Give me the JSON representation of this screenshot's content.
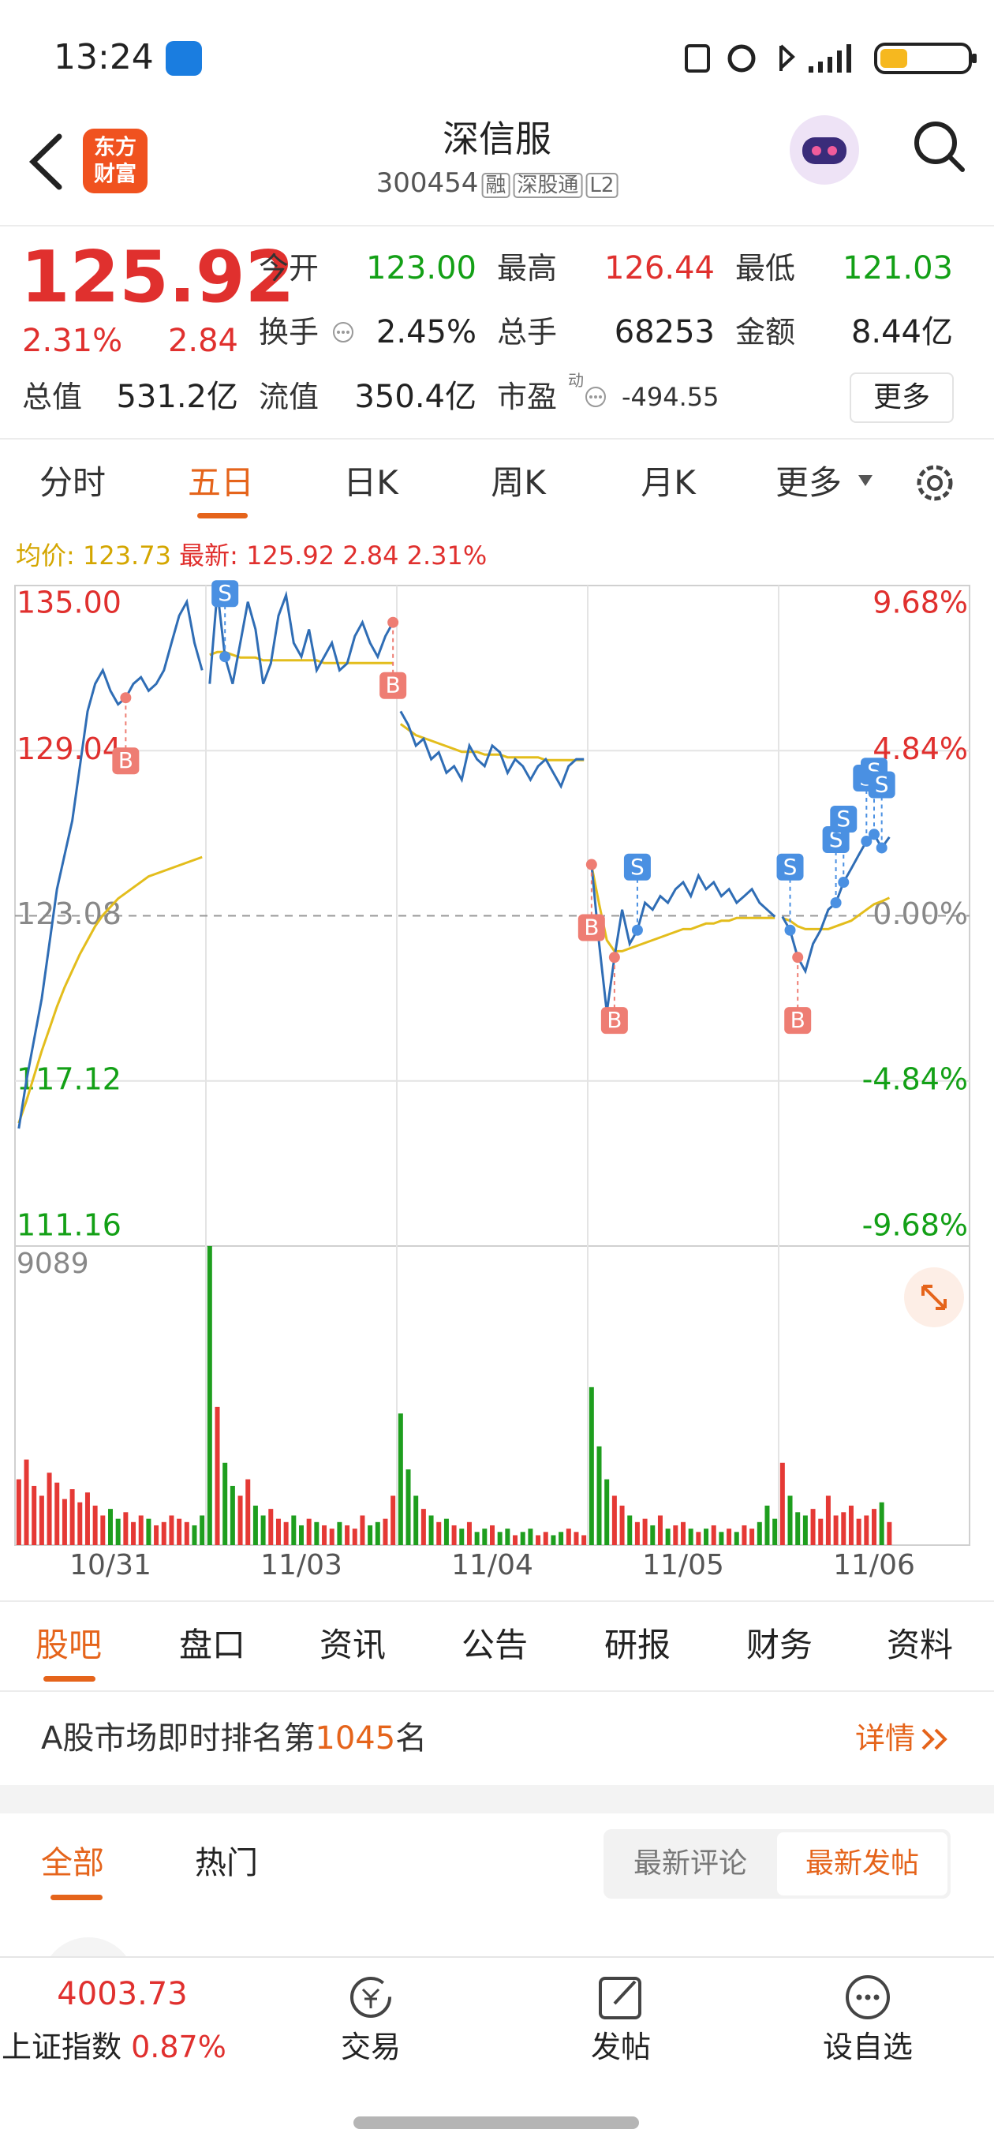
{
  "status": {
    "time": "13:24"
  },
  "header": {
    "title": "深信服",
    "code": "300454",
    "badges": [
      "融",
      "深股通",
      "L2"
    ],
    "logo": [
      "东方",
      "财富"
    ]
  },
  "quote": {
    "price": "125.92",
    "pct": "2.31%",
    "change": "2.84",
    "fields": [
      {
        "label": "今开",
        "value": "123.00"
      },
      {
        "label": "最高",
        "value": "126.44"
      },
      {
        "label": "最低",
        "value": "121.03"
      },
      {
        "label": "换手",
        "value": "2.45%"
      },
      {
        "label": "总手",
        "value": "68253"
      },
      {
        "label": "金额",
        "value": "8.44亿"
      },
      {
        "label": "总值",
        "value": "531.2亿"
      },
      {
        "label": "流值",
        "value": "350.4亿"
      },
      {
        "label": "市盈",
        "value": "-494.55"
      }
    ],
    "pe_sup": "动",
    "more": "更多"
  },
  "tabs": [
    "分时",
    "五日",
    "日K",
    "周K",
    "月K",
    "更多"
  ],
  "legend": {
    "avg_label": "均价:",
    "avg": "123.73",
    "latest_label": "最新:",
    "latest": "125.92",
    "change": "2.84",
    "pct": "2.31%"
  },
  "chart": {
    "type": "line",
    "ylim": [
      111.16,
      135
    ],
    "yticks": [
      {
        "value": 135,
        "label": "135.00"
      },
      {
        "value": 129.04,
        "label": "129.04"
      },
      {
        "value": 123.08,
        "label": "123.08"
      },
      {
        "value": 117.12,
        "label": "117.12"
      },
      {
        "value": 111.16,
        "label": "111.16"
      }
    ],
    "y2lim": [
      -9.68,
      9.68
    ],
    "y2ticks": [
      {
        "value": 9.68,
        "label": "9.68%"
      },
      {
        "value": 4.84,
        "label": "4.84%"
      },
      {
        "value": 0,
        "label": "0.00%"
      },
      {
        "value": -4.84,
        "label": "-4.84%"
      },
      {
        "value": -9.68,
        "label": "-9.68%"
      }
    ],
    "volume_lim": [
      0,
      9089
    ],
    "volume_ticks": [
      9089
    ],
    "colors": {
      "price": "#2f6db5",
      "avg": "#e3bd1c",
      "up": "#e53935",
      "down": "#1e9e1e",
      "buy": "#ee7d73",
      "sell": "#4a90e2"
    },
    "days": [
      {
        "date": "10/31",
        "price": [
          115.4,
          117.13,
          118.61,
          120.09,
          122.07,
          124.04,
          125.28,
          126.51,
          128.48,
          130.46,
          131.45,
          131.94,
          131.2,
          130.71,
          130.95,
          131.45,
          131.69,
          131.2,
          131.45,
          131.94,
          132.93,
          133.91,
          134.41,
          132.93,
          131.94
        ],
        "avg": [
          115.6,
          116.4,
          117.3,
          118.2,
          119.0,
          119.8,
          120.5,
          121.1,
          121.7,
          122.2,
          122.7,
          123.1,
          123.4,
          123.7,
          123.9,
          124.1,
          124.3,
          124.5,
          124.6,
          124.7,
          124.8,
          124.9,
          125.0,
          125.1,
          125.2
        ],
        "volume": [
          2000,
          2600,
          1800,
          1500,
          2200,
          1900,
          1400,
          1700,
          1300,
          1600,
          1200,
          900,
          1100,
          800,
          1000,
          700,
          900,
          800,
          600,
          700,
          900,
          800,
          700,
          600,
          900
        ],
        "signals": [
          null,
          null,
          null,
          null,
          null,
          null,
          null,
          null,
          null,
          null,
          null,
          null,
          null,
          null,
          "B",
          null,
          null,
          null,
          null,
          null,
          null,
          null,
          null,
          null,
          null
        ]
      },
      {
        "date": "11/03",
        "price": [
          131.45,
          134.8,
          132.43,
          131.45,
          132.93,
          134.41,
          133.42,
          131.45,
          132.19,
          133.91,
          134.65,
          132.93,
          132.43,
          133.42,
          131.94,
          132.43,
          132.93,
          131.94,
          132.19,
          133.17,
          133.67,
          132.93,
          132.43,
          133.17,
          133.67
        ],
        "avg": [
          132.5,
          132.6,
          132.6,
          132.5,
          132.4,
          132.4,
          132.4,
          132.3,
          132.3,
          132.3,
          132.3,
          132.3,
          132.3,
          132.3,
          132.3,
          132.2,
          132.2,
          132.2,
          132.2,
          132.2,
          132.2,
          132.2,
          132.2,
          132.2,
          132.2
        ],
        "volume": [
          9089,
          4200,
          2500,
          1800,
          1500,
          2000,
          1200,
          900,
          1100,
          800,
          700,
          900,
          600,
          800,
          700,
          600,
          500,
          700,
          600,
          500,
          900,
          600,
          700,
          800,
          1500
        ],
        "signals": [
          null,
          null,
          "S",
          null,
          null,
          null,
          null,
          null,
          null,
          null,
          null,
          null,
          null,
          null,
          null,
          null,
          null,
          null,
          null,
          null,
          null,
          null,
          null,
          null,
          "B"
        ]
      },
      {
        "date": "11/04",
        "price": [
          130.46,
          129.97,
          129.22,
          129.47,
          128.73,
          128.98,
          128.24,
          128.48,
          127.99,
          129.22,
          128.73,
          128.48,
          129.22,
          128.98,
          128.24,
          128.73,
          128.48,
          127.99,
          128.48,
          128.73,
          128.24,
          127.75,
          128.48,
          128.73,
          128.73
        ],
        "avg": [
          130.0,
          129.8,
          129.6,
          129.5,
          129.4,
          129.3,
          129.2,
          129.1,
          129.0,
          129.0,
          129.0,
          128.9,
          128.9,
          128.9,
          128.8,
          128.8,
          128.8,
          128.8,
          128.8,
          128.7,
          128.7,
          128.7,
          128.7,
          128.7,
          128.7
        ],
        "volume": [
          4000,
          2300,
          1500,
          1100,
          900,
          700,
          800,
          600,
          500,
          700,
          400,
          500,
          600,
          400,
          500,
          300,
          400,
          500,
          300,
          400,
          300,
          400,
          500,
          400,
          300
        ],
        "signals": [
          null,
          null,
          null,
          null,
          null,
          null,
          null,
          null,
          null,
          null,
          null,
          null,
          null,
          null,
          null,
          null,
          null,
          null,
          null,
          null,
          null,
          null,
          null,
          null,
          null
        ]
      },
      {
        "date": "11/05",
        "price": [
          124.93,
          122.07,
          119.6,
          121.58,
          123.3,
          122.07,
          122.56,
          123.55,
          123.3,
          123.79,
          123.55,
          124.04,
          124.29,
          123.79,
          124.53,
          124.04,
          124.29,
          123.79,
          124.04,
          123.55,
          123.79,
          124.04,
          123.55,
          123.3,
          123.05
        ],
        "avg": [
          124.9,
          123.5,
          122.2,
          121.8,
          121.8,
          121.9,
          122.0,
          122.1,
          122.2,
          122.3,
          122.4,
          122.5,
          122.6,
          122.6,
          122.7,
          122.8,
          122.8,
          122.9,
          122.9,
          123.0,
          123.0,
          123.0,
          123.0,
          123.0,
          123.0
        ],
        "volume": [
          4800,
          3000,
          2000,
          1500,
          1200,
          900,
          700,
          800,
          600,
          900,
          500,
          600,
          700,
          500,
          400,
          500,
          600,
          400,
          500,
          400,
          600,
          500,
          700,
          1200,
          800
        ],
        "signals": [
          "B",
          null,
          null,
          "B",
          null,
          null,
          "S",
          null,
          null,
          null,
          null,
          null,
          null,
          null,
          null,
          null,
          null,
          null,
          null,
          null,
          null,
          null,
          null,
          null,
          null
        ]
      },
      {
        "date": "11/06",
        "price": [
          123.05,
          122.56,
          121.58,
          121.08,
          122.07,
          122.56,
          123.3,
          123.55,
          124.29,
          124.78,
          125.28,
          125.77,
          126.02,
          125.53,
          125.92
        ],
        "avg": [
          123.0,
          122.9,
          122.7,
          122.6,
          122.6,
          122.6,
          122.6,
          122.7,
          122.8,
          122.9,
          123.1,
          123.3,
          123.5,
          123.6,
          123.73
        ],
        "volume": [
          2500,
          1500,
          1000,
          900,
          1100,
          800,
          1500,
          900,
          1000,
          1200,
          800,
          900,
          1100,
          1300,
          700
        ],
        "signals": [
          null,
          "S",
          "B",
          null,
          null,
          null,
          null,
          "S",
          "S",
          null,
          null,
          "S",
          "S",
          "S",
          null
        ]
      }
    ]
  },
  "subtabs": [
    "股吧",
    "盘口",
    "资讯",
    "公告",
    "研报",
    "财务",
    "资料"
  ],
  "rank": {
    "prefix": "A股市场即时排名第",
    "rank": "1045",
    "suffix": "名",
    "detail": "详情"
  },
  "posts": {
    "tabs": [
      "全部",
      "热门"
    ],
    "sort": [
      "最新评论",
      "最新发帖"
    ]
  },
  "footer": {
    "index_value": "4003.73",
    "index_name": "上证指数",
    "index_pct": "0.87%",
    "actions": [
      "交易",
      "发帖",
      "设自选"
    ]
  }
}
